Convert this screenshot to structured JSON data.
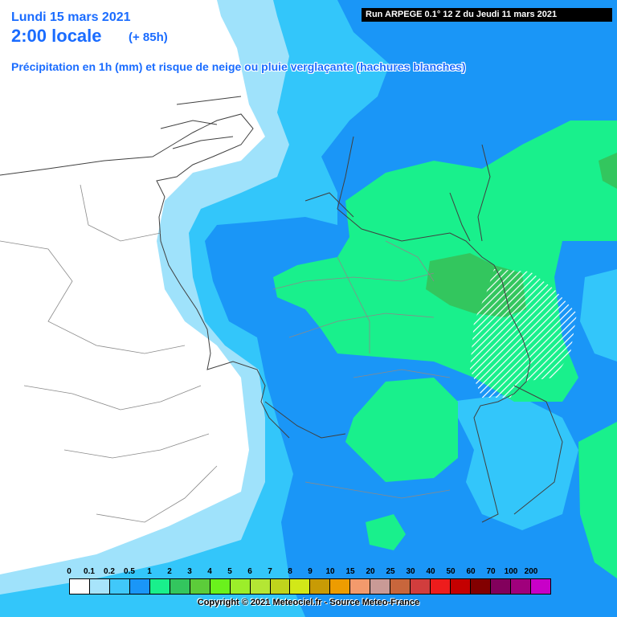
{
  "header": {
    "date": "Lundi 15 mars 2021",
    "time": "2:00 locale",
    "offset": "(+ 85h)",
    "title": "Précipitation en 1h (mm) et risque de neige ou pluie verglaçante (hachures blanches)"
  },
  "run_label": "Run ARPEGE 0.1° 12 Z du Jeudi 11 mars 2021",
  "legend": {
    "ticks": [
      "0",
      "0.1",
      "0.2",
      "0.5",
      "1",
      "2",
      "3",
      "4",
      "5",
      "6",
      "7",
      "8",
      "9",
      "10",
      "15",
      "20",
      "25",
      "30",
      "40",
      "50",
      "60",
      "70",
      "100",
      "200"
    ],
    "colors": [
      "#ffffff",
      "#a8e4fb",
      "#40c8fa",
      "#1a96f7",
      "#19f08c",
      "#33c65e",
      "#5ccc3a",
      "#6af21c",
      "#9cee2a",
      "#b4e634",
      "#c0d41c",
      "#d2e818",
      "#c89b05",
      "#ed9c00",
      "#f39a6c",
      "#c99a96",
      "#c8663c",
      "#d13d3d",
      "#ee1c1c",
      "#c40000",
      "#820000",
      "#82005c",
      "#a0007c",
      "#c800c8"
    ]
  },
  "colors": {
    "blue_light": "#9fe2fb",
    "blue_mid": "#33c6fa",
    "blue_dark": "#1a96f7",
    "green_light": "#19f08c",
    "green_dark": "#33c65e",
    "hatch": "#ffffff",
    "border_line": "#404040"
  },
  "copyright": "Copyright © 2021 Meteociel.fr - Source Meteo-France"
}
